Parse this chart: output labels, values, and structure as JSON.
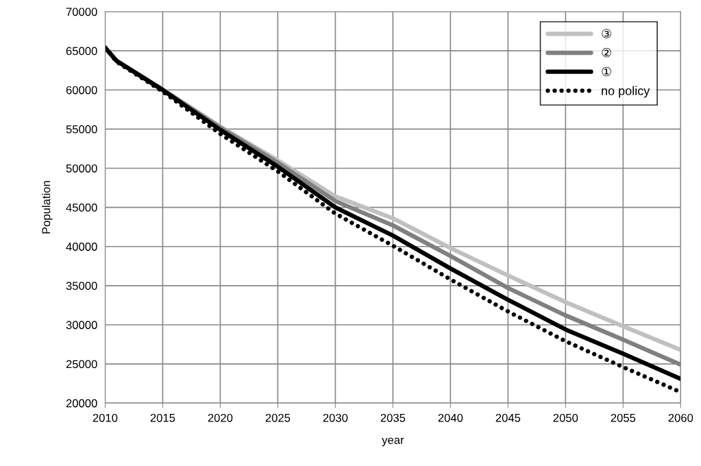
{
  "chart_data": {
    "type": "line",
    "xlabel": "year",
    "ylabel": "Population",
    "x": [
      2010,
      2011,
      2015,
      2020,
      2025,
      2030,
      2035,
      2040,
      2045,
      2050,
      2055,
      2060
    ],
    "series": [
      {
        "name": "③",
        "color": "#c0c0c0",
        "line_style": "solid",
        "values": [
          65400,
          63700,
          60100,
          55300,
          51000,
          46400,
          43600,
          39800,
          36300,
          32900,
          29800,
          26800
        ]
      },
      {
        "name": "②",
        "color": "#808080",
        "line_style": "solid",
        "values": [
          65400,
          63700,
          60000,
          55200,
          50700,
          45800,
          42700,
          38800,
          34700,
          31200,
          28100,
          24900
        ]
      },
      {
        "name": "①",
        "color": "#000000",
        "line_style": "solid",
        "values": [
          65400,
          63700,
          60000,
          54900,
          50200,
          45000,
          41400,
          37200,
          33200,
          29400,
          26300,
          23100
        ]
      },
      {
        "name": "no policy",
        "color": "#000000",
        "line_style": "dotted",
        "values": [
          65400,
          63600,
          59800,
          54400,
          49600,
          44200,
          40100,
          35800,
          31700,
          27900,
          24600,
          21400
        ]
      }
    ],
    "xlim": [
      2010,
      2060
    ],
    "xticks": [
      2010,
      2015,
      2020,
      2025,
      2030,
      2035,
      2040,
      2045,
      2050,
      2055,
      2060
    ],
    "ylim": [
      20000,
      70000
    ],
    "yticks": [
      20000,
      25000,
      30000,
      35000,
      40000,
      45000,
      50000,
      55000,
      60000,
      65000,
      70000
    ],
    "grid": true,
    "legend": "top right",
    "marker": "none"
  }
}
